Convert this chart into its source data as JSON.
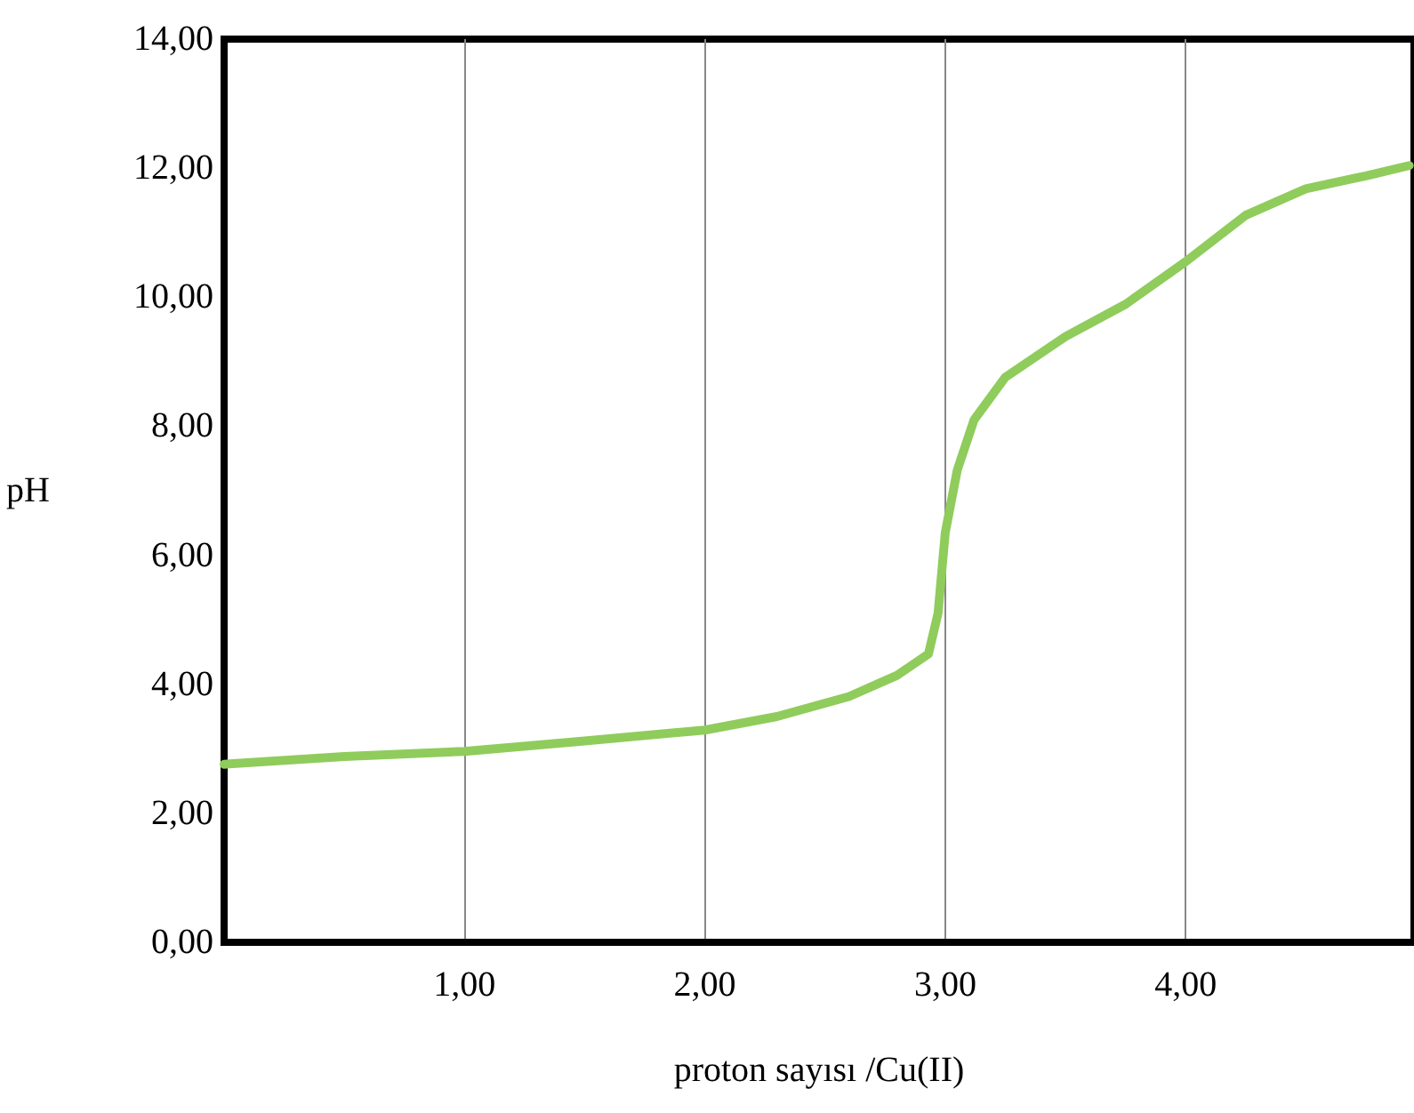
{
  "chart_data": {
    "type": "line",
    "xlabel": "proton sayısı /Cu(II)",
    "ylabel": "pH",
    "series": [
      {
        "color": "#8fcc5c",
        "x": [
          0,
          0.5,
          1,
          1.5,
          2,
          2.3,
          2.6,
          2.8,
          2.93,
          2.97,
          3.0,
          3.05,
          3.12,
          3.25,
          3.5,
          3.75,
          4.0,
          4.25,
          4.5,
          4.75,
          4.93
        ],
        "values": [
          2.76,
          2.88,
          2.96,
          3.12,
          3.29,
          3.5,
          3.81,
          4.14,
          4.47,
          5.1,
          6.35,
          7.32,
          8.1,
          8.76,
          9.39,
          9.89,
          10.55,
          11.27,
          11.68,
          11.88,
          12.04
        ]
      }
    ],
    "xlim": [
      0,
      4.95
    ],
    "xticks": [
      {
        "value": 1,
        "label": "1,00"
      },
      {
        "value": 2,
        "label": "2,00"
      },
      {
        "value": 3,
        "label": "3,00"
      },
      {
        "value": 4,
        "label": "4,00"
      }
    ],
    "ylim": [
      0,
      14
    ],
    "yticks": [
      {
        "value": 0,
        "label": "0,00"
      },
      {
        "value": 2,
        "label": "2,00"
      },
      {
        "value": 4,
        "label": "4,00"
      },
      {
        "value": 6,
        "label": "6,00"
      },
      {
        "value": 8,
        "label": "8,00"
      },
      {
        "value": 10,
        "label": "10,00"
      },
      {
        "value": 12,
        "label": "12,00"
      },
      {
        "value": 14,
        "label": "14,00"
      }
    ],
    "grid": "x",
    "marker": "none",
    "line_style": "solid"
  }
}
